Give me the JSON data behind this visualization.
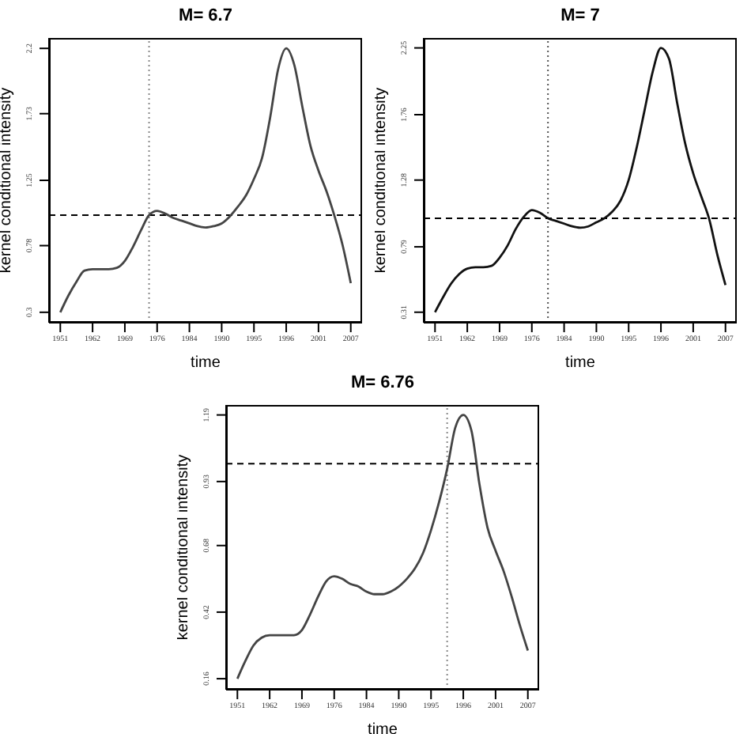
{
  "chart_data": [
    {
      "type": "line",
      "title": "M= 6.7",
      "xlabel": "time",
      "ylabel": "kernel conditional intensity",
      "marker": "none",
      "categories": [
        "1951",
        null,
        null,
        null,
        "1962",
        null,
        null,
        null,
        "1969",
        null,
        null,
        null,
        "1976",
        null,
        null,
        null,
        "1984",
        null,
        null,
        null,
        "1990",
        null,
        null,
        null,
        "1995",
        null,
        null,
        null,
        "1996",
        null,
        null,
        null,
        "2001",
        null,
        null,
        null,
        "2007"
      ],
      "ylim": [
        0.225,
        2.275
      ],
      "yticks": [
        0.3,
        0.78,
        1.25,
        1.73,
        2.2
      ],
      "series": [
        {
          "color": "#444444",
          "values": [
            0.3,
            0.42,
            0.52,
            0.6,
            0.61,
            0.61,
            0.61,
            0.62,
            0.67,
            0.77,
            0.89,
            1.0,
            1.03,
            1.01,
            0.98,
            0.96,
            0.94,
            0.92,
            0.91,
            0.92,
            0.94,
            0.99,
            1.06,
            1.14,
            1.26,
            1.41,
            1.7,
            2.05,
            2.2,
            2.08,
            1.78,
            1.5,
            1.32,
            1.17,
            0.99,
            0.78,
            0.51
          ]
        }
      ],
      "ref_lines": [
        {
          "axis": "y",
          "value": 1.0,
          "color": "#000000",
          "line_style": "dashed"
        }
      ]
    },
    {
      "type": "line",
      "title": "M= 7",
      "xlabel": "time",
      "ylabel": "kernel conditional intensity",
      "marker": "none",
      "categories": [
        "1951",
        null,
        null,
        null,
        "1962",
        null,
        null,
        null,
        "1969",
        null,
        null,
        null,
        "1976",
        null,
        null,
        null,
        "1984",
        null,
        null,
        null,
        "1990",
        null,
        null,
        null,
        "1995",
        null,
        null,
        null,
        "1996",
        null,
        null,
        null,
        "2001",
        null,
        null,
        null,
        "2007"
      ],
      "ylim": [
        0.233,
        2.323
      ],
      "yticks": [
        0.31,
        0.79,
        1.28,
        1.76,
        2.25
      ],
      "series": [
        {
          "color": "#111111",
          "values": [
            0.31,
            0.42,
            0.52,
            0.59,
            0.63,
            0.64,
            0.64,
            0.65,
            0.71,
            0.8,
            0.92,
            1.01,
            1.06,
            1.04,
            1.0,
            0.98,
            0.96,
            0.94,
            0.93,
            0.94,
            0.97,
            1.0,
            1.05,
            1.13,
            1.28,
            1.52,
            1.8,
            2.08,
            2.25,
            2.17,
            1.85,
            1.55,
            1.33,
            1.16,
            0.99,
            0.73,
            0.51
          ]
        }
      ],
      "ref_lines": [
        {
          "axis": "y",
          "value": 1.0,
          "color": "#000000",
          "line_style": "dashed"
        }
      ]
    },
    {
      "type": "line",
      "title": "M= 6.76",
      "xlabel": "time",
      "ylabel": "kernel conditional intensity",
      "marker": "none",
      "categories": [
        "1951",
        null,
        null,
        null,
        "1962",
        null,
        null,
        null,
        "1969",
        null,
        null,
        null,
        "1976",
        null,
        null,
        null,
        "1984",
        null,
        null,
        null,
        "1990",
        null,
        null,
        null,
        "1995",
        null,
        null,
        null,
        "1996",
        null,
        null,
        null,
        "2001",
        null,
        null,
        null,
        "2007"
      ],
      "ylim": [
        0.117,
        1.229
      ],
      "yticks": [
        0.16,
        0.42,
        0.68,
        0.93,
        1.19
      ],
      "series": [
        {
          "color": "#444444",
          "values": [
            0.16,
            0.23,
            0.29,
            0.32,
            0.33,
            0.33,
            0.33,
            0.33,
            0.35,
            0.41,
            0.48,
            0.54,
            0.56,
            0.55,
            0.53,
            0.52,
            0.5,
            0.49,
            0.49,
            0.5,
            0.52,
            0.55,
            0.59,
            0.65,
            0.74,
            0.85,
            0.98,
            1.14,
            1.19,
            1.13,
            0.92,
            0.75,
            0.66,
            0.58,
            0.48,
            0.37,
            0.27
          ]
        }
      ],
      "ref_lines": [
        {
          "axis": "y",
          "value": 1.0,
          "color": "#000000",
          "line_style": "dashed"
        }
      ]
    }
  ]
}
